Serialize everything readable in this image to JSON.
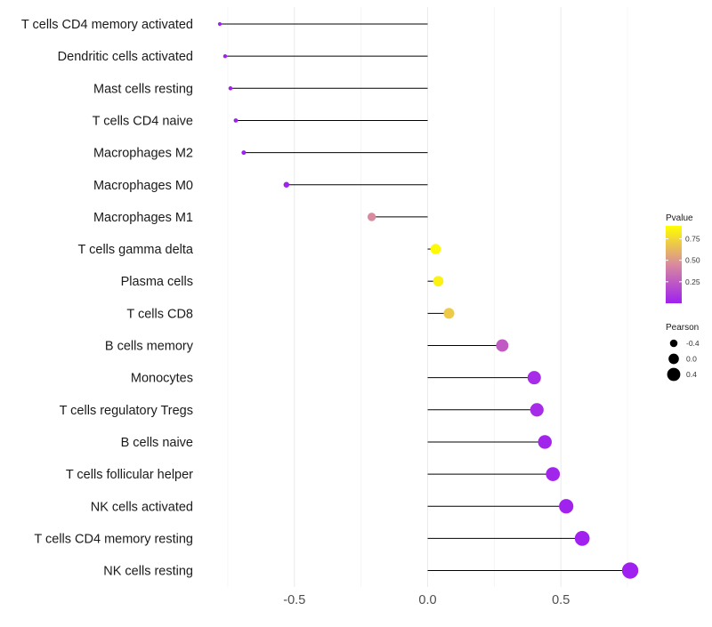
{
  "chart_data": {
    "type": "lollipop",
    "title": "",
    "xlabel": "",
    "ylabel": "",
    "xlim": [
      -0.85,
      0.85
    ],
    "x_ticks": [
      -0.5,
      0.0,
      0.5
    ],
    "x_tick_labels": [
      "-0.5",
      "0.0",
      "0.5"
    ],
    "grid": true,
    "categories": [
      "T cells CD4 memory activated",
      "Dendritic cells activated",
      "Mast cells resting",
      "T cells CD4 naive",
      "Macrophages M2",
      "Macrophages M0",
      "Macrophages M1",
      "T cells gamma delta",
      "Plasma cells",
      "T cells CD8",
      "B cells memory",
      "Monocytes",
      "T cells regulatory  Tregs ",
      "B cells naive",
      "T cells follicular helper",
      "NK cells activated",
      "T cells CD4 memory resting",
      "NK cells resting"
    ],
    "pearson": [
      -0.78,
      -0.76,
      -0.74,
      -0.72,
      -0.69,
      -0.53,
      -0.21,
      0.03,
      0.04,
      0.08,
      0.28,
      0.4,
      0.41,
      0.44,
      0.47,
      0.52,
      0.58,
      0.76
    ],
    "pvalue": [
      0.001,
      0.001,
      0.001,
      0.001,
      0.001,
      0.01,
      0.45,
      0.88,
      0.85,
      0.7,
      0.25,
      0.05,
      0.05,
      0.02,
      0.02,
      0.01,
      0.005,
      0.001
    ],
    "legend_position": "right",
    "legends": {
      "color": {
        "title": "Pvalue",
        "ticks": [
          0.75,
          0.5,
          0.25
        ],
        "tick_labels": [
          "0.75",
          "0.50",
          "0.25"
        ],
        "range": [
          0.0,
          0.9
        ],
        "low_color": "#a020f0",
        "mid_color": "#d88a9e",
        "high_color": "#ffff00"
      },
      "size": {
        "title": "Pearson",
        "values": [
          -0.4,
          0.0,
          0.4
        ],
        "labels": [
          "-0.4",
          "0.0",
          "0.4"
        ]
      }
    }
  }
}
